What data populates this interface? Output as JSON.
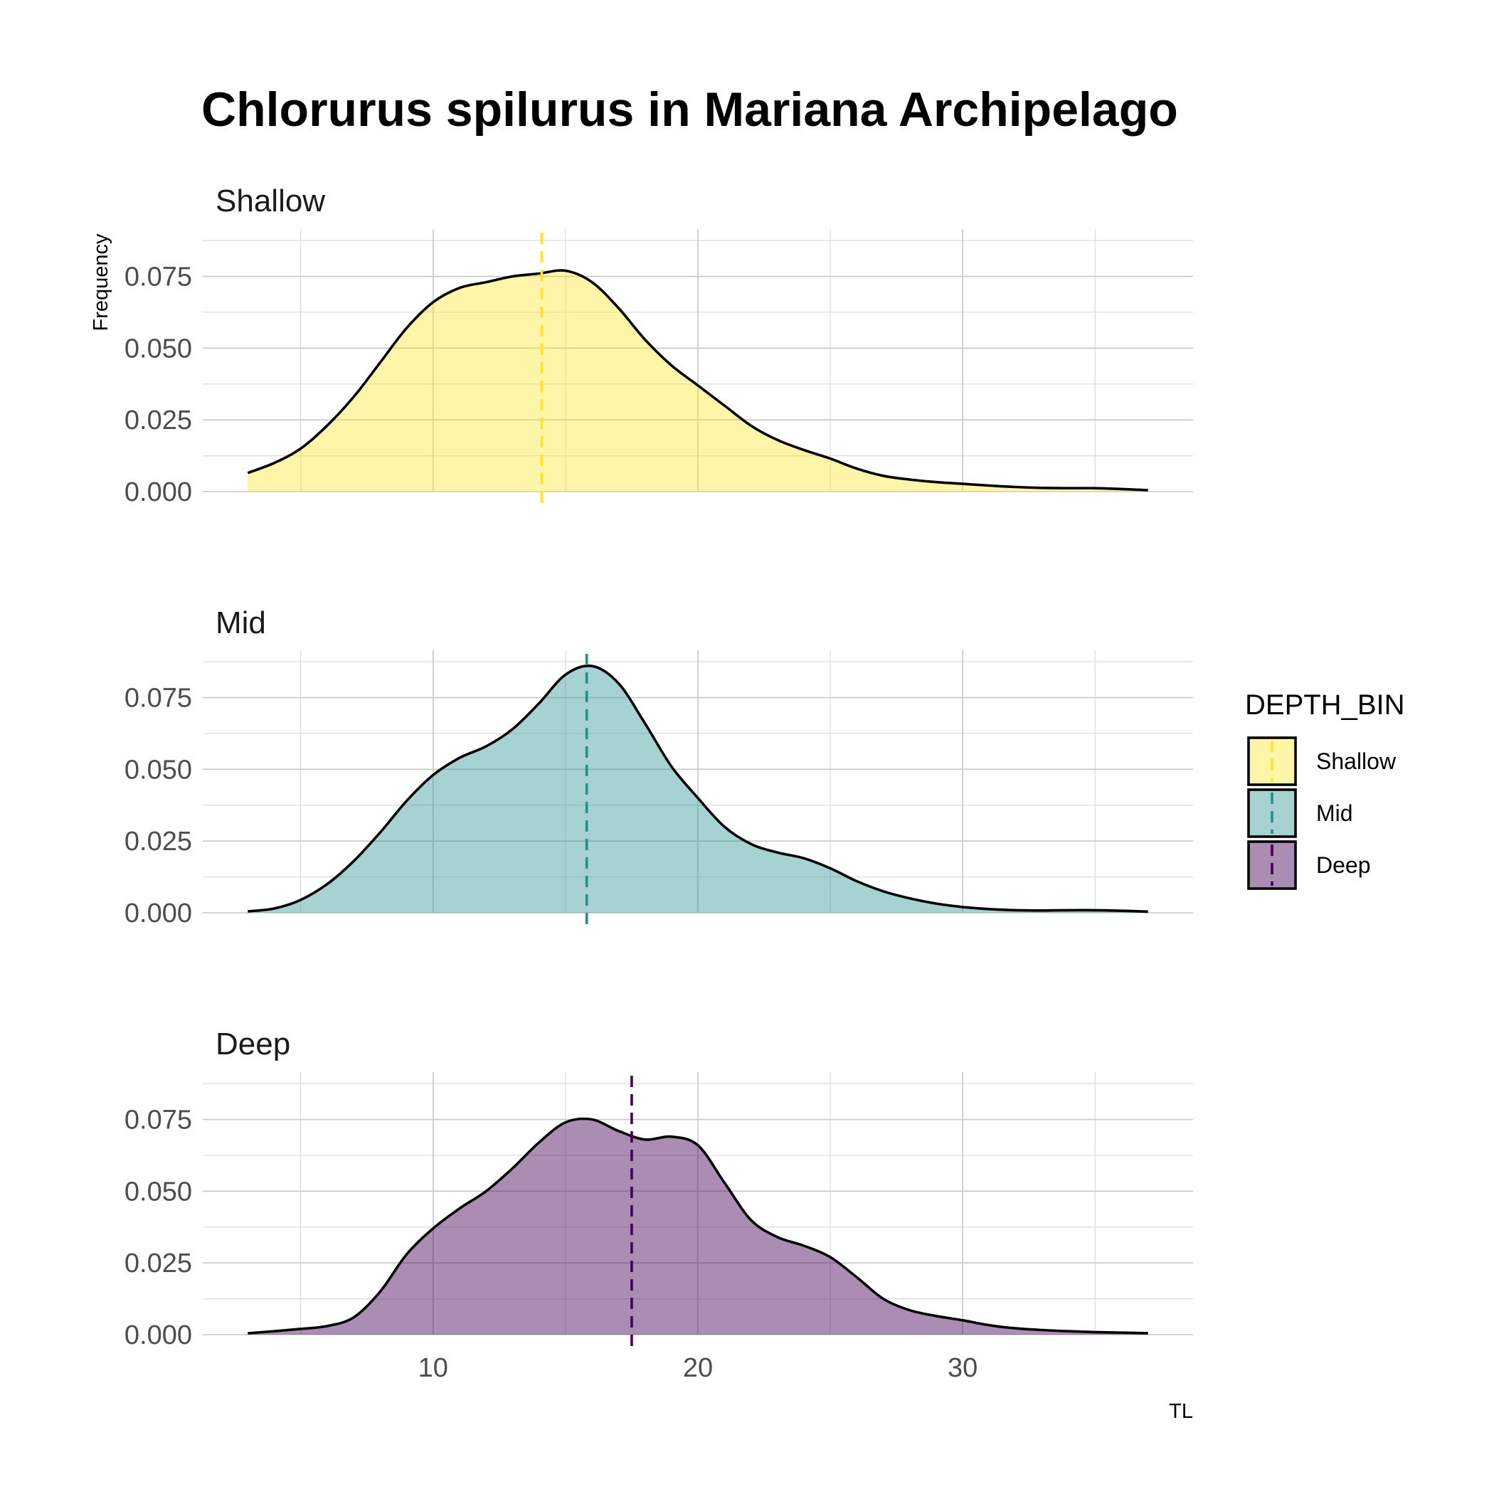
{
  "chart_data": {
    "type": "area",
    "title": "Chlorurus spilurus in Mariana Archipelago",
    "xlabel": "TL",
    "ylabel": "Frequency",
    "xlim": [
      1.3,
      38.7
    ],
    "ylim": [
      0,
      0.0915
    ],
    "x_ticks": [
      "10",
      "20",
      "30"
    ],
    "y_ticks": [
      "0.000",
      "0.025",
      "0.050",
      "0.075"
    ],
    "grid": true,
    "legend": {
      "title": "DEPTH_BIN",
      "position": "right"
    },
    "panels": [
      {
        "name": "Shallow",
        "color": "#FDE725",
        "fill_opacity": 0.4,
        "median_x": 14.1,
        "x": [
          3,
          4,
          5,
          6,
          7,
          8,
          9,
          10,
          11,
          12,
          13,
          14,
          15,
          16,
          17,
          18,
          19,
          20,
          21,
          22,
          23,
          24,
          25,
          26,
          27,
          28,
          29,
          30,
          31,
          32,
          33,
          34,
          35,
          36,
          37
        ],
        "y": [
          0.0065,
          0.01,
          0.015,
          0.023,
          0.033,
          0.045,
          0.057,
          0.066,
          0.071,
          0.073,
          0.075,
          0.076,
          0.077,
          0.073,
          0.064,
          0.053,
          0.044,
          0.037,
          0.03,
          0.023,
          0.018,
          0.0145,
          0.0115,
          0.008,
          0.0055,
          0.0042,
          0.0033,
          0.0027,
          0.0021,
          0.0016,
          0.0013,
          0.0012,
          0.0012,
          0.0009,
          0.0005
        ]
      },
      {
        "name": "Mid",
        "color": "#21908C",
        "fill_opacity": 0.4,
        "median_x": 15.8,
        "x": [
          3,
          4,
          5,
          6,
          7,
          8,
          9,
          10,
          11,
          12,
          13,
          14,
          15,
          16,
          17,
          18,
          19,
          20,
          21,
          22,
          23,
          24,
          25,
          26,
          27,
          28,
          29,
          30,
          31,
          32,
          33,
          34,
          35,
          36,
          37
        ],
        "y": [
          0.0005,
          0.0015,
          0.0045,
          0.01,
          0.018,
          0.028,
          0.039,
          0.048,
          0.054,
          0.058,
          0.064,
          0.073,
          0.083,
          0.086,
          0.08,
          0.066,
          0.051,
          0.04,
          0.03,
          0.024,
          0.021,
          0.019,
          0.0155,
          0.011,
          0.0075,
          0.005,
          0.0032,
          0.002,
          0.0013,
          0.0009,
          0.0008,
          0.0009,
          0.0009,
          0.0007,
          0.0004
        ]
      },
      {
        "name": "Deep",
        "color": "#440154",
        "fill_opacity": 0.45,
        "median_x": 17.5,
        "x": [
          3,
          4,
          5,
          6,
          7,
          8,
          9,
          10,
          11,
          12,
          13,
          14,
          15,
          16,
          17,
          18,
          19,
          20,
          21,
          22,
          23,
          24,
          25,
          26,
          27,
          28,
          29,
          30,
          31,
          32,
          33,
          34,
          35,
          36,
          37
        ],
        "y": [
          0.0005,
          0.0012,
          0.002,
          0.003,
          0.006,
          0.015,
          0.028,
          0.037,
          0.044,
          0.05,
          0.058,
          0.067,
          0.074,
          0.075,
          0.071,
          0.068,
          0.069,
          0.066,
          0.053,
          0.04,
          0.034,
          0.031,
          0.027,
          0.02,
          0.0125,
          0.0085,
          0.0065,
          0.005,
          0.0033,
          0.0022,
          0.0016,
          0.0012,
          0.0009,
          0.0007,
          0.0005
        ]
      }
    ]
  }
}
